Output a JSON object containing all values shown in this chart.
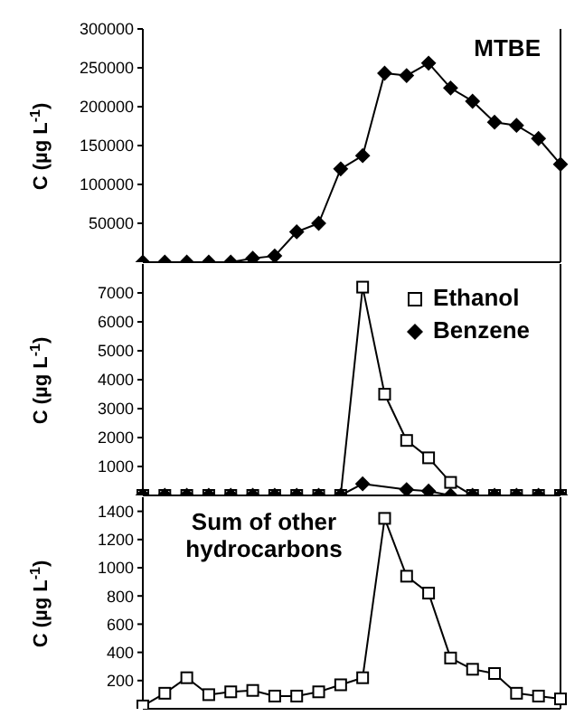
{
  "chart_data": [
    {
      "type": "line",
      "ylabel": "C (µg L$^{-1}$)",
      "categories": [
        null,
        null,
        null,
        null,
        null,
        null,
        null,
        null,
        null,
        null,
        null,
        null,
        null,
        null,
        null,
        null,
        null,
        null,
        null,
        null
      ],
      "series": [
        {
          "name": "MTBE",
          "color": "#000000",
          "marker": "diamond",
          "values": [
            0,
            0,
            0,
            0,
            0,
            5000,
            8000,
            39000,
            50000,
            120000,
            137000,
            243000,
            240000,
            256000,
            224000,
            207000,
            180000,
            176000,
            159000,
            126000
          ]
        }
      ],
      "ylim": [
        0,
        300000
      ],
      "yticks": [
        50000,
        100000,
        150000,
        200000,
        250000,
        300000
      ],
      "tick_labels": "y",
      "grid": false,
      "legend": false
    },
    {
      "type": "line",
      "ylabel": "C (µg L$^{-1}$)",
      "categories": [
        null,
        null,
        null,
        null,
        null,
        null,
        null,
        null,
        null,
        null,
        null,
        null,
        null,
        null,
        null,
        null,
        null,
        null,
        null,
        null
      ],
      "series": [
        {
          "name": "Ethanol",
          "color": "#000000",
          "marker": "square",
          "values": [
            0,
            0,
            0,
            0,
            0,
            0,
            0,
            0,
            0,
            0,
            7200,
            3500,
            1900,
            1300,
            450,
            0,
            0,
            0,
            0,
            0
          ]
        },
        {
          "name": "Benzene",
          "color": "#000000",
          "marker": "diamond",
          "values": [
            0,
            0,
            0,
            0,
            0,
            0,
            0,
            0,
            0,
            0,
            400,
            null,
            200,
            150,
            0,
            0,
            0,
            0,
            0,
            0
          ]
        }
      ],
      "ylim": [
        0,
        8000
      ],
      "yticks": [
        1000,
        2000,
        3000,
        4000,
        5000,
        6000,
        7000
      ],
      "tick_labels": "y",
      "grid": false,
      "legend": "top right"
    },
    {
      "type": "line",
      "ylabel": "C (µg L$^{-1}$)",
      "categories": [
        null,
        null,
        null,
        null,
        null,
        null,
        null,
        null,
        null,
        null,
        null,
        null,
        null,
        null,
        null,
        null,
        null,
        null,
        null,
        null
      ],
      "series": [
        {
          "name": "Sum of other hydrocarbons",
          "color": "#000000",
          "marker": "square",
          "values": [
            20,
            110,
            220,
            100,
            120,
            130,
            90,
            90,
            120,
            170,
            220,
            1350,
            940,
            820,
            360,
            280,
            250,
            110,
            90,
            70
          ]
        }
      ],
      "ylim": [
        0,
        1500
      ],
      "yticks": [
        200,
        400,
        600,
        800,
        1000,
        1200,
        1400
      ],
      "tick_labels": "y",
      "grid": false,
      "legend": false
    }
  ]
}
